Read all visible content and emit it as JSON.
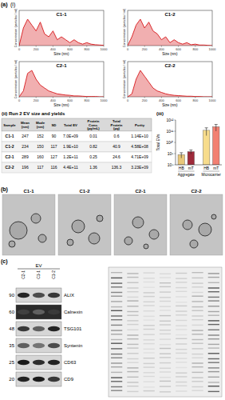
{
  "panel_labels": {
    "a": "(a)",
    "a_i": "(i)",
    "a_ii": "(ii) Run 2 EV size and yields",
    "a_iii": "(iii)",
    "b": "(b)",
    "c": "(c)"
  },
  "chart_data": [
    {
      "type": "line",
      "title": "C1-1",
      "xlabel": "Size (nm)",
      "ylabel": "Concentration (particles / ml)",
      "color": "#d7191c",
      "tick_labels": "x",
      "x": [
        0,
        50,
        100,
        150,
        200,
        250,
        300,
        350,
        400,
        450,
        500,
        550,
        600,
        650,
        700,
        750,
        800,
        850,
        900,
        950,
        1000
      ],
      "values": [
        0,
        6,
        9,
        7,
        5,
        8,
        4,
        3,
        5,
        2,
        3,
        2,
        1,
        2,
        1,
        0.5,
        1,
        0.5,
        0.3,
        0.2,
        0.1
      ],
      "xlim": [
        0,
        1000
      ],
      "ylim": [
        0,
        12
      ],
      "xticks": [
        0,
        200,
        400,
        600,
        800,
        1000
      ]
    },
    {
      "type": "line",
      "title": "C1-2",
      "xlabel": "Size (nm)",
      "ylabel": "Concentration (particles / ml)",
      "color": "#d7191c",
      "tick_labels": "x",
      "x": [
        0,
        50,
        100,
        150,
        200,
        250,
        300,
        350,
        400,
        450,
        500,
        550,
        600,
        650,
        700,
        750,
        800,
        850,
        900,
        950,
        1000
      ],
      "values": [
        0,
        3,
        7,
        9,
        6,
        8,
        5,
        4,
        2,
        3,
        1,
        2,
        1,
        0.5,
        1,
        0.3,
        0.5,
        0.2,
        0.2,
        0.1,
        0
      ],
      "xlim": [
        0,
        1000
      ],
      "ylim": [
        0,
        12
      ],
      "xticks": [
        0,
        200,
        400,
        600,
        800,
        1000
      ]
    },
    {
      "type": "line",
      "title": "C2-1",
      "xlabel": "Size (nm)",
      "ylabel": "Concentration (particles / ml)",
      "color": "#d7191c",
      "tick_labels": "x",
      "x": [
        0,
        50,
        100,
        150,
        200,
        250,
        300,
        350,
        400,
        450,
        500,
        550,
        600,
        650,
        700,
        750,
        800,
        850,
        900,
        950,
        1000
      ],
      "values": [
        0,
        2,
        8,
        9,
        6,
        4,
        3,
        2,
        1.5,
        1,
        0.8,
        0.6,
        0.5,
        0.3,
        0.3,
        0.2,
        0.1,
        0.1,
        0.1,
        0,
        0
      ],
      "xlim": [
        0,
        1000
      ],
      "ylim": [
        0,
        12
      ],
      "xticks": [
        0,
        200,
        400,
        600,
        800,
        1000
      ]
    },
    {
      "type": "line",
      "title": "C2-2",
      "xlabel": "Size (nm)",
      "ylabel": "Concentration (particles / ml)",
      "color": "#d7191c",
      "tick_labels": "x",
      "x": [
        0,
        50,
        100,
        150,
        200,
        250,
        300,
        350,
        400,
        450,
        500,
        550,
        600,
        650,
        700,
        750,
        800,
        850,
        900,
        950,
        1000
      ],
      "values": [
        0,
        1,
        6,
        9,
        7,
        5,
        3,
        2,
        1.5,
        1,
        0.7,
        0.5,
        0.4,
        0.3,
        0.2,
        0.2,
        0.1,
        0.1,
        0,
        0,
        0
      ],
      "xlim": [
        0,
        1000
      ],
      "ylim": [
        0,
        12
      ],
      "xticks": [
        0,
        200,
        400,
        600,
        800,
        1000
      ]
    },
    {
      "type": "bar",
      "ylabel": "Total EVs",
      "log": "y",
      "categories": [
        "HB",
        "mT",
        "HB",
        "mT"
      ],
      "group_labels": [
        "Aggregate",
        "Microcarrier"
      ],
      "values": [
        800000000,
        1500000000,
        120000000000,
        250000000000
      ],
      "errors": [
        400000000,
        600000000,
        80000000000,
        150000000000
      ],
      "colors": [
        "#e8c77a",
        "#9e2a3a",
        "#f7dc8c",
        "#f28072"
      ],
      "ylim": [
        100000000,
        1000000000000
      ],
      "yticks": [
        {
          "value": 100000000,
          "label": "10⁸"
        },
        {
          "value": 1000000000,
          "label": "10⁹"
        },
        {
          "value": 10000000000,
          "label": "10¹⁰"
        },
        {
          "value": 100000000000,
          "label": "10¹¹"
        },
        {
          "value": 1000000000000,
          "label": "10¹²"
        }
      ]
    }
  ],
  "table": {
    "header": [
      "Sample",
      "Mean (nm)",
      "Mode (nm)",
      "SD",
      "Total EV",
      "Protein Conc. (µg/mL)",
      "Total Protein (µg)",
      "Purity"
    ],
    "rows": [
      [
        "C1-1",
        "247",
        "152",
        "90",
        "7.0E+09",
        "0.01",
        "0.6",
        "1.14E+10"
      ],
      [
        "C1-2",
        "234",
        "150",
        "117",
        "1.9E+10",
        "0.82",
        "40.9",
        "4.58E+08"
      ],
      [
        "C2-1",
        "289",
        "160",
        "127",
        "1.2E+11",
        "0.25",
        "24.6",
        "4.71E+09"
      ],
      [
        "C2-2",
        "196",
        "117",
        "116",
        "4.4E+11",
        "1.36",
        "136.3",
        "3.23E+09"
      ]
    ]
  },
  "tem": {
    "images": [
      "C1-1",
      "C1-2",
      "C2-1",
      "C2-2"
    ]
  },
  "blot": {
    "group": "EV",
    "lanes": [
      "C2-1",
      "C1-1",
      "C1-2"
    ],
    "rows": [
      {
        "mw": "90",
        "protein": "ALIX"
      },
      {
        "mw": "60",
        "protein": "Calnexin"
      },
      {
        "mw": "48",
        "protein": "TSG101"
      },
      {
        "mw": "35",
        "protein": "Syntenin"
      },
      {
        "mw": "25",
        "protein": "CD63"
      },
      {
        "mw": "20",
        "protein": "CD9"
      }
    ]
  }
}
